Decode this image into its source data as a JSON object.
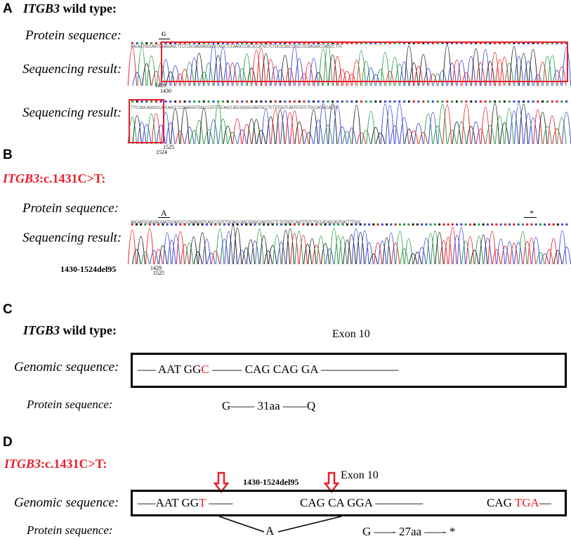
{
  "panels": {
    "a": {
      "letter": "A",
      "title_gene": "ITGB3",
      "title_rest": " wild type:",
      "protein_label": "Protein sequence:",
      "seq_label_1": "Sequencing result:",
      "seq_label_2": "Sequencing result:",
      "aa_marker": "G",
      "pos_1": "1429",
      "pos_2": "1430",
      "pos_3": "1525",
      "pos_4": "1524",
      "bases_1": "AACAATGGCAATGGAGGAGCTCCCCGCGAGGAGGGCCCGGCTCCAAGCCCACGCCATGCTCTGCGCGGCCCGCCGCGAGGGCCACGCCTTC",
      "bases_2": "TTCCAGCAGGGCCAGCAGCCCCGGAGGGTGGCCCGTCTGCAGCCAGCGGGGCGAGTGCCTCTGTGGTCAATGTGTCTGCCACAGCAGTG"
    },
    "b": {
      "letter": "B",
      "title_gene": "ITGB3",
      "title_rest": ":c.1431C>T:",
      "protein_label": "Protein sequence:",
      "seq_label": "Sequencing result:",
      "deletion_label": "1430-1524del95",
      "aa_marker": "A",
      "stop_marker": "*",
      "pos_1": "1429",
      "pos_2": "1525",
      "bases": "AACAATGCAGGACGAATGCAGCCCCCGGAGGGTCAGCCCGTCTGCAGCCAGCGGGGCGAGTGCCTCTGTGGTCAATGTGTCTGCCACAGCAGTGACTTTGGC"
    },
    "c": {
      "letter": "C",
      "title_gene": "ITGB3",
      "title_rest": " wild type:",
      "exon_label": "Exon 10",
      "genomic_label": "Genomic sequence:",
      "protein_label": "Protein sequence:",
      "genomic_seq": {
        "dash_1": "––– ",
        "part_1": "AAT GG",
        "red_1": "C",
        "dash_2": " ––––– ",
        "part_2": "CAG CAG GA",
        "dash_3": " –––––––––––––"
      },
      "protein_seq": "G––––  31aa  ––––Q"
    },
    "d": {
      "letter": "D",
      "title_gene": "ITGB3",
      "title_rest": ":c.1431C>T:",
      "exon_label": "Exon 10",
      "deletion_label": "1430-1524del95",
      "genomic_label": "Genomic sequence:",
      "protein_label": "Protein sequence:",
      "genomic_seq": {
        "dash_1": "–––",
        "part_1": "AAT GG",
        "red_1": "T",
        "dash_2": " ––––",
        "part_2": "CAG CA GGA",
        "dash_3": " –––––––– ",
        "part_3": "CAG ",
        "red_2": "TGA",
        "dash_4": "––"
      },
      "splice_aa": "A",
      "protein_seq": "G  –––-  27aa  –––-   *"
    }
  },
  "colors": {
    "red": "#e8202a",
    "trace_a": "#2a9a4a",
    "trace_c": "#3a48d8",
    "trace_g": "#222222",
    "trace_t": "#e8202a",
    "highlight_box": "#e8202a"
  }
}
